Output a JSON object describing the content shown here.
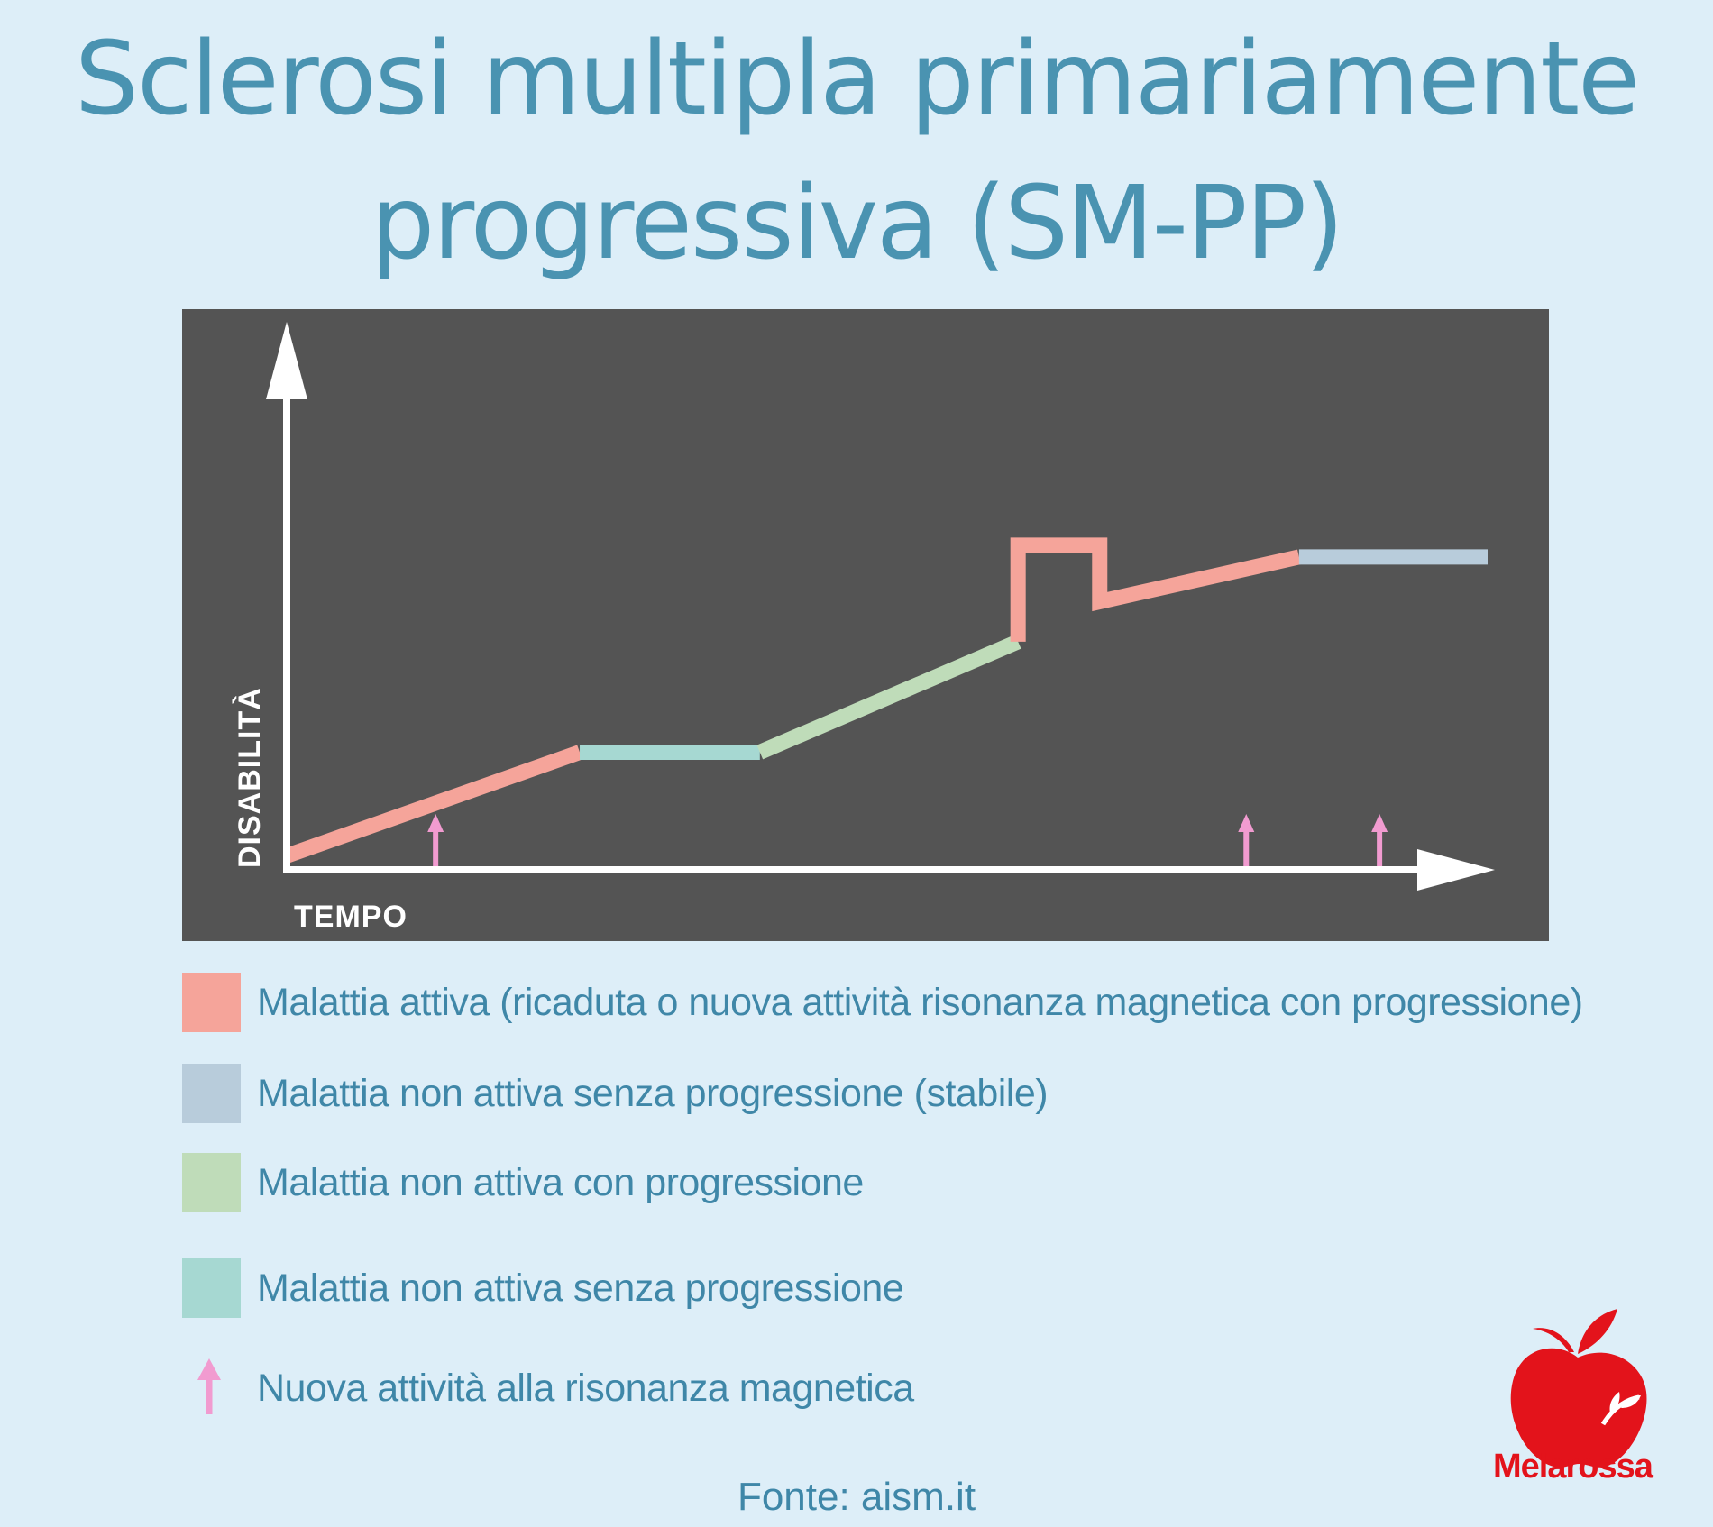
{
  "title": {
    "line1": "Sclerosi multipla primariamente",
    "line2": "progressiva (SM-PP)"
  },
  "chart_data": {
    "type": "line",
    "xlabel": "TEMPO",
    "ylabel": "DISABILITÀ",
    "background": "#545454",
    "segments": [
      {
        "category": "active",
        "color": "#f5a49a",
        "points": [
          [
            0,
            0.03
          ],
          [
            0.244,
            0.25
          ]
        ]
      },
      {
        "category": "not_active_no_progression",
        "color": "#a6d8d2",
        "points": [
          [
            0.244,
            0.25
          ],
          [
            0.394,
            0.25
          ]
        ]
      },
      {
        "category": "not_active_with_progression",
        "color": "#bfdcb9",
        "points": [
          [
            0.394,
            0.25
          ],
          [
            0.609,
            0.485
          ]
        ]
      },
      {
        "category": "active",
        "color": "#f5a49a",
        "points": [
          [
            0.609,
            0.485
          ],
          [
            0.609,
            0.69
          ],
          [
            0.677,
            0.69
          ],
          [
            0.677,
            0.57
          ],
          [
            0.843,
            0.665
          ]
        ]
      },
      {
        "category": "stable",
        "color": "#b8ccdb",
        "points": [
          [
            0.843,
            0.665
          ],
          [
            1.0,
            0.665
          ]
        ]
      }
    ],
    "mri_markers": [
      0.124,
      0.799,
      0.91
    ],
    "marker_color": "#f19bd0"
  },
  "legend": [
    {
      "color": "#f5a49a",
      "label": "Malattia attiva (ricaduta o nuova attività risonanza magnetica con progressione)"
    },
    {
      "color": "#b8ccdb",
      "label": "Malattia non attiva senza progressione (stabile)"
    },
    {
      "color": "#bfdcb9",
      "label": "Malattia non attiva con progressione"
    },
    {
      "color": "#a6d8d2",
      "label": "Malattia non attiva senza progressione"
    },
    {
      "color": "#f19bd0",
      "label": "Nuova attività alla risonanza magnetica",
      "icon": "up-arrow-icon"
    }
  ],
  "source": "Fonte: aism.it",
  "brand": {
    "name": "Melarossa",
    "color": "#e3131b",
    "icon": "apple-logo-icon"
  }
}
